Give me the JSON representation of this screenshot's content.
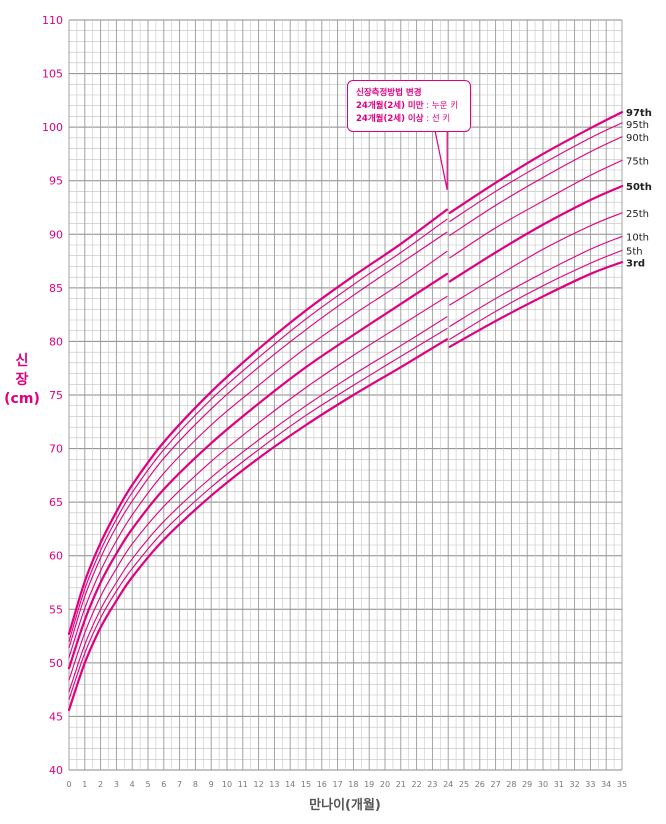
{
  "chart_data": {
    "type": "line",
    "xlabel": "만나이(개월)",
    "ylabel_lines": [
      "신",
      "장",
      "(cm)"
    ],
    "xlim": [
      0,
      35
    ],
    "ylim": [
      40,
      110
    ],
    "x_ticks": [
      0,
      1,
      2,
      3,
      4,
      5,
      6,
      7,
      8,
      9,
      10,
      11,
      12,
      13,
      14,
      15,
      16,
      17,
      18,
      19,
      20,
      21,
      22,
      23,
      24,
      25,
      26,
      27,
      28,
      29,
      30,
      31,
      32,
      33,
      34,
      35
    ],
    "y_ticks": [
      40,
      45,
      50,
      55,
      60,
      65,
      70,
      75,
      80,
      85,
      90,
      95,
      100,
      105,
      110
    ],
    "line_color": "#e0007f",
    "grid": true,
    "annotation": {
      "title": "신장측정방법 변경",
      "line1_bold": "24개월(2세) 미만",
      "line1_rest": " : 누운 키",
      "line2_bold": "24개월(2세) 이상",
      "line2_rest": " : 선 키",
      "x": 24
    },
    "series": [
      {
        "name": "97th",
        "bold": true,
        "before": [
          [
            0,
            52.7
          ],
          [
            1,
            57.6
          ],
          [
            2,
            61.2
          ],
          [
            3,
            64.1
          ],
          [
            4,
            66.6
          ],
          [
            6,
            70.6
          ],
          [
            9,
            75.3
          ],
          [
            12,
            79.3
          ],
          [
            15,
            82.9
          ],
          [
            18,
            86.1
          ],
          [
            21,
            89.1
          ],
          [
            24,
            92.3
          ]
        ],
        "after": [
          [
            24,
            92.0
          ],
          [
            27,
            94.8
          ],
          [
            30,
            97.5
          ],
          [
            33,
            99.9
          ],
          [
            35,
            101.4
          ]
        ]
      },
      {
        "name": "95th",
        "bold": false,
        "before": [
          [
            0,
            52.0
          ],
          [
            1,
            56.9
          ],
          [
            2,
            60.5
          ],
          [
            3,
            63.4
          ],
          [
            4,
            65.9
          ],
          [
            6,
            69.9
          ],
          [
            9,
            74.6
          ],
          [
            12,
            78.5
          ],
          [
            15,
            82.1
          ],
          [
            18,
            85.3
          ],
          [
            21,
            88.3
          ],
          [
            24,
            91.4
          ]
        ],
        "after": [
          [
            24,
            91.2
          ],
          [
            27,
            94.0
          ],
          [
            30,
            96.6
          ],
          [
            33,
            99.0
          ],
          [
            35,
            100.4
          ]
        ]
      },
      {
        "name": "90th",
        "bold": false,
        "before": [
          [
            0,
            51.4
          ],
          [
            1,
            56.2
          ],
          [
            2,
            59.8
          ],
          [
            3,
            62.7
          ],
          [
            4,
            65.1
          ],
          [
            6,
            69.1
          ],
          [
            9,
            73.7
          ],
          [
            12,
            77.6
          ],
          [
            15,
            81.1
          ],
          [
            18,
            84.3
          ],
          [
            21,
            87.3
          ],
          [
            24,
            90.2
          ]
        ],
        "after": [
          [
            24,
            89.9
          ],
          [
            27,
            92.7
          ],
          [
            30,
            95.3
          ],
          [
            33,
            97.7
          ],
          [
            35,
            99.1
          ]
        ]
      },
      {
        "name": "75th",
        "bold": false,
        "before": [
          [
            0,
            50.5
          ],
          [
            1,
            55.1
          ],
          [
            2,
            58.6
          ],
          [
            3,
            61.4
          ],
          [
            4,
            63.8
          ],
          [
            6,
            67.7
          ],
          [
            9,
            72.2
          ],
          [
            12,
            75.9
          ],
          [
            15,
            79.4
          ],
          [
            18,
            82.5
          ],
          [
            21,
            85.4
          ],
          [
            24,
            88.4
          ]
        ],
        "after": [
          [
            24,
            87.8
          ],
          [
            27,
            90.6
          ],
          [
            30,
            93.1
          ],
          [
            33,
            95.5
          ],
          [
            35,
            96.9
          ]
        ]
      },
      {
        "name": "50th",
        "bold": true,
        "before": [
          [
            0,
            49.5
          ],
          [
            1,
            54.0
          ],
          [
            2,
            57.5
          ],
          [
            3,
            60.2
          ],
          [
            4,
            62.5
          ],
          [
            6,
            66.2
          ],
          [
            9,
            70.5
          ],
          [
            12,
            74.2
          ],
          [
            15,
            77.6
          ],
          [
            18,
            80.6
          ],
          [
            21,
            83.5
          ],
          [
            24,
            86.3
          ]
        ],
        "after": [
          [
            24,
            85.6
          ],
          [
            27,
            88.3
          ],
          [
            30,
            90.9
          ],
          [
            33,
            93.2
          ],
          [
            35,
            94.5
          ]
        ]
      },
      {
        "name": "25th",
        "bold": false,
        "before": [
          [
            0,
            48.4
          ],
          [
            1,
            52.8
          ],
          [
            2,
            56.2
          ],
          [
            3,
            58.8
          ],
          [
            4,
            61.1
          ],
          [
            6,
            64.6
          ],
          [
            9,
            68.8
          ],
          [
            12,
            72.4
          ],
          [
            15,
            75.7
          ],
          [
            18,
            78.7
          ],
          [
            21,
            81.5
          ],
          [
            24,
            84.2
          ]
        ],
        "after": [
          [
            24,
            83.4
          ],
          [
            27,
            86.0
          ],
          [
            30,
            88.6
          ],
          [
            33,
            90.8
          ],
          [
            35,
            92.0
          ]
        ]
      },
      {
        "name": "10th",
        "bold": false,
        "before": [
          [
            0,
            47.3
          ],
          [
            1,
            51.7
          ],
          [
            2,
            55.0
          ],
          [
            3,
            57.5
          ],
          [
            4,
            59.7
          ],
          [
            6,
            63.2
          ],
          [
            9,
            67.3
          ],
          [
            12,
            70.8
          ],
          [
            15,
            74.0
          ],
          [
            18,
            76.9
          ],
          [
            21,
            79.6
          ],
          [
            24,
            82.3
          ]
        ],
        "after": [
          [
            24,
            81.4
          ],
          [
            27,
            84.0
          ],
          [
            30,
            86.4
          ],
          [
            33,
            88.6
          ],
          [
            35,
            89.8
          ]
        ]
      },
      {
        "name": "5th",
        "bold": false,
        "before": [
          [
            0,
            46.6
          ],
          [
            1,
            50.9
          ],
          [
            2,
            54.2
          ],
          [
            3,
            56.7
          ],
          [
            4,
            58.8
          ],
          [
            6,
            62.3
          ],
          [
            9,
            66.4
          ],
          [
            12,
            69.9
          ],
          [
            15,
            73.1
          ],
          [
            18,
            75.9
          ],
          [
            21,
            78.6
          ],
          [
            24,
            81.2
          ]
        ],
        "after": [
          [
            24,
            80.2
          ],
          [
            27,
            82.8
          ],
          [
            30,
            85.2
          ],
          [
            33,
            87.3
          ],
          [
            35,
            88.5
          ]
        ]
      },
      {
        "name": "3rd",
        "bold": true,
        "before": [
          [
            0,
            45.6
          ],
          [
            1,
            50.0
          ],
          [
            2,
            53.3
          ],
          [
            3,
            55.8
          ],
          [
            4,
            58.0
          ],
          [
            6,
            61.5
          ],
          [
            9,
            65.6
          ],
          [
            12,
            69.1
          ],
          [
            15,
            72.2
          ],
          [
            18,
            75.0
          ],
          [
            21,
            77.6
          ],
          [
            24,
            80.2
          ]
        ],
        "after": [
          [
            24,
            79.5
          ],
          [
            27,
            81.9
          ],
          [
            30,
            84.2
          ],
          [
            33,
            86.3
          ],
          [
            35,
            87.4
          ]
        ]
      }
    ]
  }
}
